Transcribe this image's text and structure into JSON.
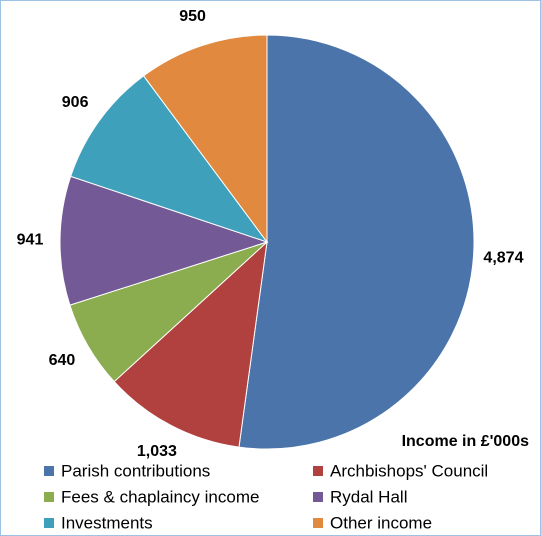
{
  "chart_data": {
    "type": "pie",
    "annotation": "Income in £'000s",
    "categories": [
      "Parish contributions",
      "Archbishops' Council",
      "Fees & chaplaincy income",
      "Rydal Hall",
      "Investments",
      "Other income"
    ],
    "values": [
      4874,
      1033,
      640,
      941,
      906,
      950
    ],
    "value_labels": [
      "4,874",
      "1,033",
      "640",
      "941",
      "906",
      "950"
    ],
    "colors": [
      "#4a74aa",
      "#b0413e",
      "#8bac4f",
      "#735995",
      "#3fa0bb",
      "#e0893f"
    ],
    "legend": "bottom"
  }
}
